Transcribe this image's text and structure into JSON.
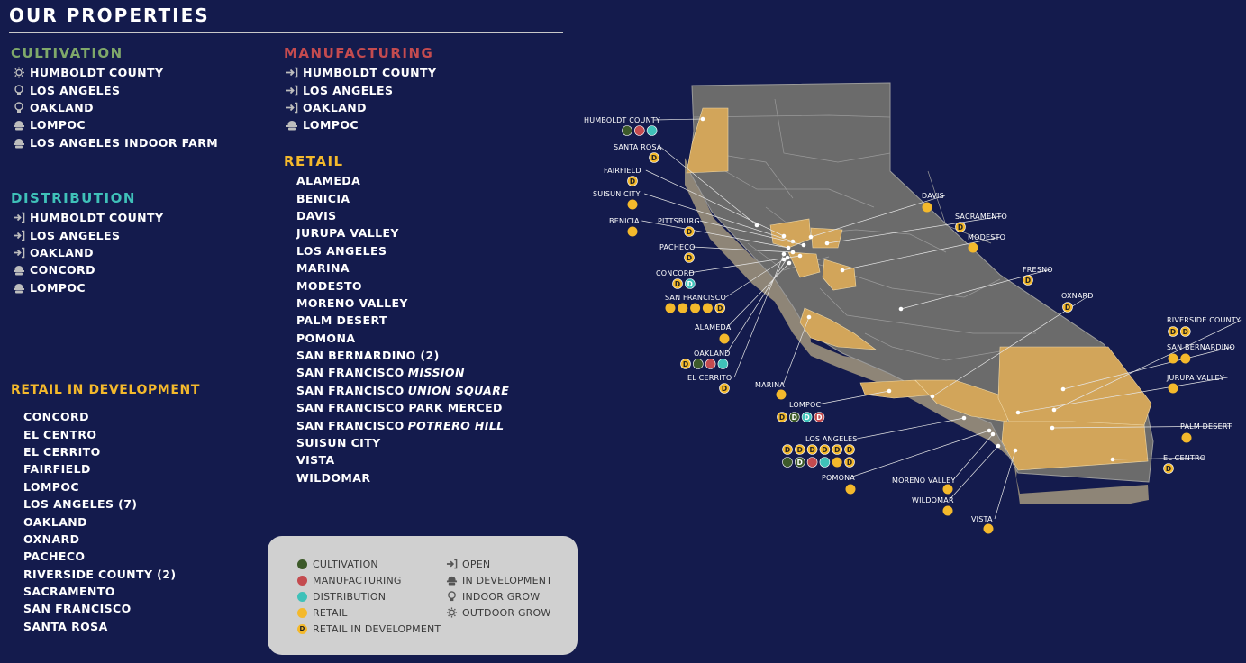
{
  "title": "OUR PROPERTIES",
  "colors": {
    "background": "#141b4d",
    "cultivation": "#3d5a2a",
    "manufacturing": "#c44b4f",
    "distribution": "#3fc1b9",
    "retail": "#f4b92c",
    "land_gray": "#6b6b6b",
    "county_highlight": "#d2a55a"
  },
  "sections": {
    "cultivation": {
      "heading": "CULTIVATION",
      "items": [
        {
          "label": "HUMBOLDT COUNTY",
          "icon": "outdoor-grow-icon"
        },
        {
          "label": "LOS ANGELES",
          "icon": "indoor-grow-icon"
        },
        {
          "label": "OAKLAND",
          "icon": "indoor-grow-icon"
        },
        {
          "label": "LOMPOC",
          "icon": "in-development-icon"
        },
        {
          "label": "LOS ANGELES INDOOR FARM",
          "icon": "in-development-icon"
        }
      ]
    },
    "distribution": {
      "heading": "DISTRIBUTION",
      "items": [
        {
          "label": "HUMBOLDT COUNTY",
          "icon": "open-icon"
        },
        {
          "label": "LOS ANGELES",
          "icon": "open-icon"
        },
        {
          "label": "OAKLAND",
          "icon": "open-icon"
        },
        {
          "label": "CONCORD",
          "icon": "in-development-icon"
        },
        {
          "label": "LOMPOC",
          "icon": "in-development-icon"
        }
      ]
    },
    "retail_dev": {
      "heading": "RETAIL IN DEVELOPMENT",
      "items": [
        "CONCORD",
        "EL CENTRO",
        "EL CERRITO",
        "FAIRFIELD",
        "LOMPOC",
        "LOS ANGELES (7)",
        "OAKLAND",
        "OXNARD",
        "PACHECO",
        "RIVERSIDE COUNTY (2)",
        "SACRAMENTO",
        "SAN FRANCISCO",
        "SANTA ROSA"
      ]
    },
    "manufacturing": {
      "heading": "MANUFACTURING",
      "items": [
        {
          "label": "HUMBOLDT COUNTY",
          "icon": "open-icon"
        },
        {
          "label": "LOS ANGELES",
          "icon": "open-icon"
        },
        {
          "label": "OAKLAND",
          "icon": "open-icon"
        },
        {
          "label": "LOMPOC",
          "icon": "in-development-icon"
        }
      ]
    },
    "retail": {
      "heading": "RETAIL",
      "items": [
        {
          "label": "ALAMEDA",
          "suffix": ""
        },
        {
          "label": "BENICIA",
          "suffix": ""
        },
        {
          "label": "DAVIS",
          "suffix": ""
        },
        {
          "label": "JURUPA VALLEY",
          "suffix": ""
        },
        {
          "label": "LOS ANGELES",
          "suffix": ""
        },
        {
          "label": "MARINA",
          "suffix": ""
        },
        {
          "label": "MODESTO",
          "suffix": ""
        },
        {
          "label": "MORENO VALLEY",
          "suffix": ""
        },
        {
          "label": "PALM DESERT",
          "suffix": ""
        },
        {
          "label": "POMONA",
          "suffix": ""
        },
        {
          "label": "SAN BERNARDINO (2)",
          "suffix": ""
        },
        {
          "label": "SAN FRANCISCO",
          "suffix": "MISSION"
        },
        {
          "label": "SAN FRANCISCO",
          "suffix": "UNION SQUARE"
        },
        {
          "label": "SAN FRANCISCO PARK MERCED",
          "suffix": ""
        },
        {
          "label": "SAN FRANCISCO",
          "suffix": "POTRERO HILL"
        },
        {
          "label": "SUISUN CITY",
          "suffix": ""
        },
        {
          "label": "VISTA",
          "suffix": ""
        },
        {
          "label": "WILDOMAR",
          "suffix": ""
        }
      ]
    }
  },
  "map": {
    "locations": [
      {
        "name": "HUMBOLDT COUNTY",
        "markers": [
          "C",
          "M",
          "DI"
        ]
      },
      {
        "name": "SANTA ROSA",
        "markers": [
          "D"
        ]
      },
      {
        "name": "FAIRFIELD",
        "markers": [
          "D"
        ]
      },
      {
        "name": "SUISUN CITY",
        "markers": [
          "R"
        ]
      },
      {
        "name": "BENICIA",
        "markers": [
          "R"
        ]
      },
      {
        "name": "PITTSBURG",
        "markers": [
          "D"
        ]
      },
      {
        "name": "PACHECO",
        "markers": [
          "D"
        ]
      },
      {
        "name": "CONCORD",
        "markers": [
          "D",
          "DD"
        ]
      },
      {
        "name": "SAN FRANCISCO",
        "markers": [
          "R",
          "R",
          "R",
          "R",
          "D"
        ]
      },
      {
        "name": "ALAMEDA",
        "markers": [
          "R"
        ]
      },
      {
        "name": "OAKLAND",
        "markers": [
          "D",
          "C",
          "M",
          "DI"
        ]
      },
      {
        "name": "EL CERRITO",
        "markers": [
          "D"
        ]
      },
      {
        "name": "DAVIS",
        "markers": [
          "R"
        ]
      },
      {
        "name": "SACRAMENTO",
        "markers": [
          "D"
        ]
      },
      {
        "name": "MODESTO",
        "markers": [
          "R"
        ]
      },
      {
        "name": "FRESNO",
        "markers": [
          "D"
        ]
      },
      {
        "name": "OXNARD",
        "markers": [
          "D"
        ]
      },
      {
        "name": "MARINA",
        "markers": [
          "R"
        ]
      },
      {
        "name": "LOMPOC",
        "markers": [
          "D",
          "CD",
          "DD",
          "MD"
        ]
      },
      {
        "name": "LOS ANGELES",
        "markers": [
          "D",
          "D",
          "D",
          "D",
          "D",
          "D",
          "C",
          "CD",
          "M",
          "DI",
          "R",
          "D"
        ]
      },
      {
        "name": "POMONA",
        "markers": [
          "R"
        ]
      },
      {
        "name": "MORENO VALLEY",
        "markers": [
          "R"
        ]
      },
      {
        "name": "WILDOMAR",
        "markers": [
          "R"
        ]
      },
      {
        "name": "VISTA",
        "markers": [
          "R"
        ]
      },
      {
        "name": "RIVERSIDE COUNTY",
        "markers": [
          "D",
          "D"
        ]
      },
      {
        "name": "SAN BERNARDINO",
        "markers": [
          "R",
          "R"
        ]
      },
      {
        "name": "JURUPA VALLEY",
        "markers": [
          "R"
        ]
      },
      {
        "name": "PALM DESERT",
        "markers": [
          "R"
        ]
      },
      {
        "name": "EL CENTRO",
        "markers": [
          "D"
        ]
      }
    ],
    "retail_dev_badge": "D"
  },
  "legend": {
    "left": [
      {
        "label": "CULTIVATION",
        "color": "#3d5a2a"
      },
      {
        "label": "MANUFACTURING",
        "color": "#c44b4f"
      },
      {
        "label": "DISTRIBUTION",
        "color": "#3fc1b9"
      },
      {
        "label": "RETAIL",
        "color": "#f4b92c"
      },
      {
        "label": "RETAIL IN DEVELOPMENT",
        "color": "#f4b92c",
        "badge": "D"
      }
    ],
    "right": [
      {
        "label": "OPEN",
        "icon": "open-icon"
      },
      {
        "label": "IN DEVELOPMENT",
        "icon": "in-development-icon"
      },
      {
        "label": "INDOOR GROW",
        "icon": "indoor-grow-icon"
      },
      {
        "label": "OUTDOOR GROW",
        "icon": "outdoor-grow-icon"
      }
    ]
  }
}
